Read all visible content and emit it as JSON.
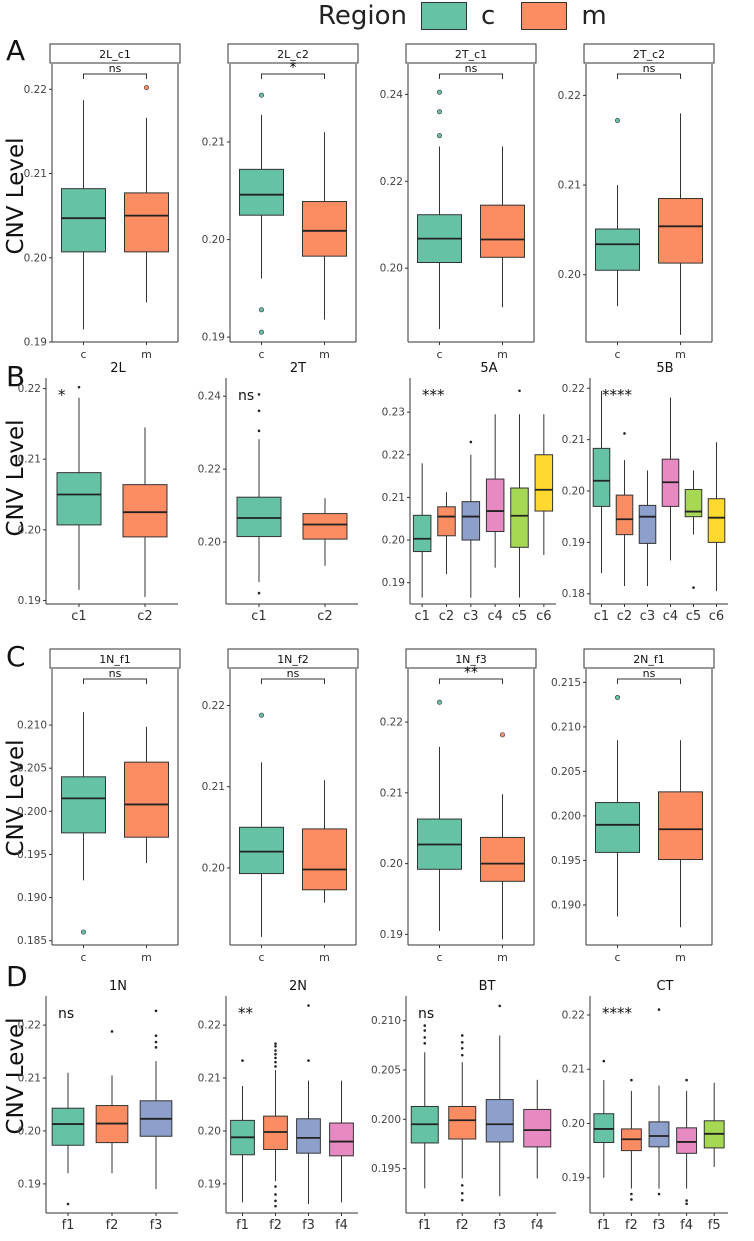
{
  "legend": {
    "title": "Region",
    "items": [
      {
        "label": "c",
        "color": "#66c2a5"
      },
      {
        "label": "m",
        "color": "#fc8d62"
      }
    ]
  },
  "rows": [
    {
      "letter": "A",
      "ylabel": "CNV Level"
    },
    {
      "letter": "B",
      "ylabel": "CNV Level"
    },
    {
      "letter": "C",
      "ylabel": "CNV Level"
    },
    {
      "letter": "D",
      "ylabel": "CNV Level"
    }
  ],
  "chart_data": [
    {
      "type": "boxplot",
      "title": "2L_c1",
      "strip": true,
      "bracket": true,
      "sig": "ns",
      "ylim": [
        0.19,
        0.223
      ],
      "yticks": [
        0.19,
        0.2,
        0.21,
        0.22
      ],
      "boxes": [
        {
          "category": "c",
          "color": "#66c2a5",
          "whisker_low": 0.1915,
          "q1": 0.2007,
          "median": 0.2047,
          "q3": 0.2082,
          "whisker_high": 0.2187,
          "outliers": []
        },
        {
          "category": "m",
          "color": "#fc8d62",
          "whisker_low": 0.1947,
          "q1": 0.2007,
          "median": 0.205,
          "q3": 0.2077,
          "whisker_high": 0.2166,
          "outliers": [
            0.2202
          ]
        }
      ]
    },
    {
      "type": "boxplot",
      "title": "2L_c2",
      "strip": true,
      "bracket": true,
      "sig": "*",
      "ylim": [
        0.1895,
        0.218
      ],
      "yticks": [
        0.19,
        0.2,
        0.21
      ],
      "boxes": [
        {
          "category": "c",
          "color": "#66c2a5",
          "whisker_low": 0.196,
          "q1": 0.2025,
          "median": 0.2046,
          "q3": 0.2072,
          "whisker_high": 0.2128,
          "outliers": [
            0.2148,
            0.1928,
            0.1905
          ]
        },
        {
          "category": "m",
          "color": "#fc8d62",
          "whisker_low": 0.1918,
          "q1": 0.1983,
          "median": 0.2009,
          "q3": 0.2039,
          "whisker_high": 0.211,
          "outliers": []
        }
      ]
    },
    {
      "type": "boxplot",
      "title": "2T_c1",
      "strip": true,
      "bracket": true,
      "sig": "ns",
      "ylim": [
        0.183,
        0.247
      ],
      "yticks": [
        0.2,
        0.22,
        0.24
      ],
      "boxes": [
        {
          "category": "c",
          "color": "#66c2a5",
          "whisker_low": 0.186,
          "q1": 0.2013,
          "median": 0.2068,
          "q3": 0.2123,
          "whisker_high": 0.228,
          "outliers": [
            0.2405,
            0.236,
            0.2305
          ]
        },
        {
          "category": "m",
          "color": "#fc8d62",
          "whisker_low": 0.191,
          "q1": 0.2025,
          "median": 0.2066,
          "q3": 0.2145,
          "whisker_high": 0.228,
          "outliers": []
        }
      ]
    },
    {
      "type": "boxplot",
      "title": "2T_c2",
      "strip": true,
      "bracket": true,
      "sig": "ns",
      "ylim": [
        0.1925,
        0.2235
      ],
      "yticks": [
        0.2,
        0.21,
        0.22
      ],
      "boxes": [
        {
          "category": "c",
          "color": "#66c2a5",
          "whisker_low": 0.1965,
          "q1": 0.2005,
          "median": 0.2034,
          "q3": 0.2051,
          "whisker_high": 0.21,
          "outliers": [
            0.2172
          ]
        },
        {
          "category": "m",
          "color": "#fc8d62",
          "whisker_low": 0.1933,
          "q1": 0.2013,
          "median": 0.2054,
          "q3": 0.2085,
          "whisker_high": 0.218,
          "outliers": []
        }
      ]
    },
    {
      "type": "boxplot",
      "title": "2L",
      "strip": false,
      "bracket": false,
      "sig": "*",
      "ylim": [
        0.1895,
        0.2215
      ],
      "yticks": [
        0.19,
        0.2,
        0.21,
        0.22
      ],
      "boxes": [
        {
          "category": "c1",
          "color": "#66c2a5",
          "whisker_low": 0.1915,
          "q1": 0.2007,
          "median": 0.205,
          "q3": 0.2081,
          "whisker_high": 0.2187,
          "outliers": [
            0.2202
          ]
        },
        {
          "category": "c2",
          "color": "#fc8d62",
          "whisker_low": 0.1905,
          "q1": 0.199,
          "median": 0.2025,
          "q3": 0.2064,
          "whisker_high": 0.2145,
          "outliers": []
        }
      ]
    },
    {
      "type": "boxplot",
      "title": "2T",
      "strip": false,
      "bracket": false,
      "sig": "ns",
      "ylim": [
        0.183,
        0.245
      ],
      "yticks": [
        0.2,
        0.22,
        0.24
      ],
      "boxes": [
        {
          "category": "c1",
          "color": "#66c2a5",
          "whisker_low": 0.189,
          "q1": 0.2015,
          "median": 0.2066,
          "q3": 0.2123,
          "whisker_high": 0.2282,
          "outliers": [
            0.2405,
            0.236,
            0.2305,
            0.186
          ]
        },
        {
          "category": "c2",
          "color": "#fc8d62",
          "whisker_low": 0.1935,
          "q1": 0.2008,
          "median": 0.2048,
          "q3": 0.2078,
          "whisker_high": 0.212,
          "outliers": []
        }
      ]
    },
    {
      "type": "boxplot",
      "title": "5A",
      "strip": false,
      "bracket": false,
      "sig": "***",
      "ylim": [
        0.185,
        0.238
      ],
      "yticks": [
        0.19,
        0.2,
        0.21,
        0.22,
        0.23
      ],
      "boxes": [
        {
          "category": "c1",
          "color": "#66c2a5",
          "whisker_low": 0.1865,
          "q1": 0.1973,
          "median": 0.2003,
          "q3": 0.2058,
          "whisker_high": 0.218,
          "outliers": []
        },
        {
          "category": "c2",
          "color": "#fc8d62",
          "whisker_low": 0.192,
          "q1": 0.201,
          "median": 0.2055,
          "q3": 0.2078,
          "whisker_high": 0.2112,
          "outliers": []
        },
        {
          "category": "c3",
          "color": "#8da0cb",
          "whisker_low": 0.1865,
          "q1": 0.2,
          "median": 0.2055,
          "q3": 0.209,
          "whisker_high": 0.22,
          "outliers": [
            0.223
          ]
        },
        {
          "category": "c4",
          "color": "#e78ac3",
          "whisker_low": 0.1935,
          "q1": 0.202,
          "median": 0.2068,
          "q3": 0.2143,
          "whisker_high": 0.2295,
          "outliers": []
        },
        {
          "category": "c5",
          "color": "#a6d854",
          "whisker_low": 0.1865,
          "q1": 0.1983,
          "median": 0.2057,
          "q3": 0.2122,
          "whisker_high": 0.2295,
          "outliers": [
            0.235
          ]
        },
        {
          "category": "c6",
          "color": "#ffd92f",
          "whisker_low": 0.1965,
          "q1": 0.2068,
          "median": 0.2118,
          "q3": 0.22,
          "whisker_high": 0.2295,
          "outliers": []
        }
      ]
    },
    {
      "type": "boxplot",
      "title": "5B",
      "strip": false,
      "bracket": false,
      "sig": "****",
      "ylim": [
        0.178,
        0.222
      ],
      "yticks": [
        0.18,
        0.19,
        0.2,
        0.21,
        0.22
      ],
      "boxes": [
        {
          "category": "c1",
          "color": "#66c2a5",
          "whisker_low": 0.184,
          "q1": 0.197,
          "median": 0.202,
          "q3": 0.2083,
          "whisker_high": 0.2195,
          "outliers": []
        },
        {
          "category": "c2",
          "color": "#fc8d62",
          "whisker_low": 0.1815,
          "q1": 0.1915,
          "median": 0.1945,
          "q3": 0.1992,
          "whisker_high": 0.206,
          "outliers": [
            0.2112
          ]
        },
        {
          "category": "c3",
          "color": "#8da0cb",
          "whisker_low": 0.1815,
          "q1": 0.1898,
          "median": 0.195,
          "q3": 0.1972,
          "whisker_high": 0.204,
          "outliers": []
        },
        {
          "category": "c4",
          "color": "#e78ac3",
          "whisker_low": 0.1865,
          "q1": 0.197,
          "median": 0.2017,
          "q3": 0.2062,
          "whisker_high": 0.2182,
          "outliers": []
        },
        {
          "category": "c5",
          "color": "#a6d854",
          "whisker_low": 0.1915,
          "q1": 0.195,
          "median": 0.196,
          "q3": 0.2003,
          "whisker_high": 0.204,
          "outliers": [
            0.1812
          ]
        },
        {
          "category": "c6",
          "color": "#ffd92f",
          "whisker_low": 0.1805,
          "q1": 0.19,
          "median": 0.1948,
          "q3": 0.1985,
          "whisker_high": 0.2095,
          "outliers": []
        }
      ]
    },
    {
      "type": "boxplot",
      "title": "1N_f1",
      "strip": true,
      "bracket": true,
      "sig": "ns",
      "ylim": [
        0.1845,
        0.2165
      ],
      "yticks": [
        0.185,
        0.19,
        0.195,
        0.2,
        0.205,
        0.21
      ],
      "boxes": [
        {
          "category": "c",
          "color": "#66c2a5",
          "whisker_low": 0.192,
          "q1": 0.1975,
          "median": 0.2015,
          "q3": 0.204,
          "whisker_high": 0.2115,
          "outliers": [
            0.186
          ]
        },
        {
          "category": "m",
          "color": "#fc8d62",
          "whisker_low": 0.194,
          "q1": 0.197,
          "median": 0.2008,
          "q3": 0.2057,
          "whisker_high": 0.2098,
          "outliers": []
        }
      ]
    },
    {
      "type": "boxplot",
      "title": "1N_f2",
      "strip": true,
      "bracket": true,
      "sig": "ns",
      "ylim": [
        0.1905,
        0.2245
      ],
      "yticks": [
        0.2,
        0.21,
        0.22
      ],
      "boxes": [
        {
          "category": "c",
          "color": "#66c2a5",
          "whisker_low": 0.1915,
          "q1": 0.1993,
          "median": 0.202,
          "q3": 0.205,
          "whisker_high": 0.213,
          "outliers": [
            0.2188
          ]
        },
        {
          "category": "m",
          "color": "#fc8d62",
          "whisker_low": 0.1957,
          "q1": 0.1973,
          "median": 0.1998,
          "q3": 0.2048,
          "whisker_high": 0.2108,
          "outliers": []
        }
      ]
    },
    {
      "type": "boxplot",
      "title": "1N_f3",
      "strip": true,
      "bracket": true,
      "sig": "**",
      "ylim": [
        0.1885,
        0.2275
      ],
      "yticks": [
        0.19,
        0.2,
        0.21,
        0.22
      ],
      "boxes": [
        {
          "category": "c",
          "color": "#66c2a5",
          "whisker_low": 0.1905,
          "q1": 0.1992,
          "median": 0.2027,
          "q3": 0.2063,
          "whisker_high": 0.2165,
          "outliers": [
            0.2228
          ]
        },
        {
          "category": "m",
          "color": "#fc8d62",
          "whisker_low": 0.1893,
          "q1": 0.1975,
          "median": 0.2,
          "q3": 0.2037,
          "whisker_high": 0.2098,
          "outliers": [
            0.2182
          ]
        }
      ]
    },
    {
      "type": "boxplot",
      "title": "2N_f1",
      "strip": true,
      "bracket": true,
      "sig": "ns",
      "ylim": [
        0.1855,
        0.2165
      ],
      "yticks": [
        0.19,
        0.195,
        0.2,
        0.205,
        0.21,
        0.215
      ],
      "boxes": [
        {
          "category": "c",
          "color": "#66c2a5",
          "whisker_low": 0.1887,
          "q1": 0.1959,
          "median": 0.199,
          "q3": 0.2015,
          "whisker_high": 0.2085,
          "outliers": [
            0.2133
          ]
        },
        {
          "category": "m",
          "color": "#fc8d62",
          "whisker_low": 0.1875,
          "q1": 0.1951,
          "median": 0.1985,
          "q3": 0.2027,
          "whisker_high": 0.2085,
          "outliers": []
        }
      ]
    },
    {
      "type": "boxplot",
      "title": "1N",
      "strip": false,
      "bracket": false,
      "sig": "ns",
      "ylim": [
        0.1845,
        0.2255
      ],
      "yticks": [
        0.19,
        0.2,
        0.21,
        0.22
      ],
      "boxes": [
        {
          "category": "f1",
          "color": "#66c2a5",
          "whisker_low": 0.192,
          "q1": 0.1973,
          "median": 0.2013,
          "q3": 0.2043,
          "whisker_high": 0.211,
          "outliers": [
            0.1862
          ]
        },
        {
          "category": "f2",
          "color": "#fc8d62",
          "whisker_low": 0.192,
          "q1": 0.1978,
          "median": 0.2014,
          "q3": 0.2048,
          "whisker_high": 0.2105,
          "outliers": [
            0.2188
          ]
        },
        {
          "category": "f3",
          "color": "#8da0cb",
          "whisker_low": 0.189,
          "q1": 0.199,
          "median": 0.2023,
          "q3": 0.2057,
          "whisker_high": 0.2132,
          "outliers": [
            0.2227,
            0.218,
            0.2168,
            0.2158
          ]
        }
      ]
    },
    {
      "type": "boxplot",
      "title": "2N",
      "strip": false,
      "bracket": false,
      "sig": "**",
      "ylim": [
        0.1845,
        0.2255
      ],
      "yticks": [
        0.19,
        0.2,
        0.21,
        0.22
      ],
      "boxes": [
        {
          "category": "f1",
          "color": "#66c2a5",
          "whisker_low": 0.1865,
          "q1": 0.1955,
          "median": 0.1988,
          "q3": 0.202,
          "whisker_high": 0.2085,
          "outliers": [
            0.2133
          ]
        },
        {
          "category": "f2",
          "color": "#fc8d62",
          "whisker_low": 0.1905,
          "q1": 0.1965,
          "median": 0.1998,
          "q3": 0.2028,
          "whisker_high": 0.2115,
          "outliers": [
            0.2165,
            0.216,
            0.2152,
            0.2145,
            0.2138,
            0.213,
            0.2122,
            0.1895,
            0.188,
            0.1868,
            0.1858
          ]
        },
        {
          "category": "f3",
          "color": "#8da0cb",
          "whisker_low": 0.1862,
          "q1": 0.1958,
          "median": 0.1987,
          "q3": 0.2023,
          "whisker_high": 0.2095,
          "outliers": [
            0.2237,
            0.2133
          ]
        },
        {
          "category": "f4",
          "color": "#e78ac3",
          "whisker_low": 0.1865,
          "q1": 0.1953,
          "median": 0.198,
          "q3": 0.2015,
          "whisker_high": 0.2095,
          "outliers": []
        }
      ]
    },
    {
      "type": "boxplot",
      "title": "BT",
      "strip": false,
      "bracket": false,
      "sig": "ns",
      "ylim": [
        0.1905,
        0.2125
      ],
      "yticks": [
        0.195,
        0.2,
        0.205,
        0.21
      ],
      "boxes": [
        {
          "category": "f1",
          "color": "#66c2a5",
          "whisker_low": 0.193,
          "q1": 0.1976,
          "median": 0.1995,
          "q3": 0.2013,
          "whisker_high": 0.2068,
          "outliers": [
            0.2095,
            0.209,
            0.2083,
            0.2077
          ]
        },
        {
          "category": "f2",
          "color": "#fc8d62",
          "whisker_low": 0.194,
          "q1": 0.198,
          "median": 0.1999,
          "q3": 0.2013,
          "whisker_high": 0.2058,
          "outliers": [
            0.2085,
            0.2078,
            0.2072,
            0.2065,
            0.1933,
            0.1925,
            0.1918
          ]
        },
        {
          "category": "f3",
          "color": "#8da0cb",
          "whisker_low": 0.1922,
          "q1": 0.1977,
          "median": 0.1995,
          "q3": 0.202,
          "whisker_high": 0.2085,
          "outliers": [
            0.2115
          ]
        },
        {
          "category": "f4",
          "color": "#e78ac3",
          "whisker_low": 0.194,
          "q1": 0.1972,
          "median": 0.1989,
          "q3": 0.201,
          "whisker_high": 0.204,
          "outliers": []
        }
      ]
    },
    {
      "type": "boxplot",
      "title": "CT",
      "strip": false,
      "bracket": false,
      "sig": "****",
      "ylim": [
        0.1835,
        0.2235
      ],
      "yticks": [
        0.19,
        0.2,
        0.21,
        0.22
      ],
      "boxes": [
        {
          "category": "f1",
          "color": "#66c2a5",
          "whisker_low": 0.19,
          "q1": 0.1965,
          "median": 0.199,
          "q3": 0.2018,
          "whisker_high": 0.208,
          "outliers": [
            0.2115
          ]
        },
        {
          "category": "f2",
          "color": "#fc8d62",
          "whisker_low": 0.188,
          "q1": 0.195,
          "median": 0.1971,
          "q3": 0.199,
          "whisker_high": 0.206,
          "outliers": [
            0.208,
            0.187,
            0.186
          ]
        },
        {
          "category": "f3",
          "color": "#8da0cb",
          "whisker_low": 0.188,
          "q1": 0.1957,
          "median": 0.1977,
          "q3": 0.2003,
          "whisker_high": 0.207,
          "outliers": [
            0.221,
            0.187
          ]
        },
        {
          "category": "f4",
          "color": "#e78ac3",
          "whisker_low": 0.188,
          "q1": 0.1945,
          "median": 0.1966,
          "q3": 0.1992,
          "whisker_high": 0.206,
          "outliers": [
            0.208,
            0.1858,
            0.1852
          ]
        },
        {
          "category": "f5",
          "color": "#a6d854",
          "whisker_low": 0.192,
          "q1": 0.1955,
          "median": 0.1981,
          "q3": 0.2005,
          "whisker_high": 0.2075,
          "outliers": []
        }
      ]
    }
  ]
}
